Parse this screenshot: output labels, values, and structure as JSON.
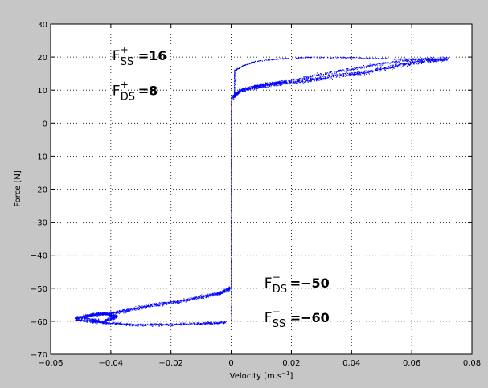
{
  "chart_data": {
    "type": "scatter",
    "title": "",
    "xlabel": "Velocity [m.s",
    "xlabel_sup": "−1",
    "xlabel_close": "]",
    "ylabel": "Force [N]",
    "xlim": [
      -0.06,
      0.08
    ],
    "ylim": [
      -70,
      30
    ],
    "xticks": [
      -0.06,
      -0.04,
      -0.02,
      0,
      0.02,
      0.04,
      0.06,
      0.08
    ],
    "yticks": [
      -70,
      -60,
      -50,
      -40,
      -30,
      -20,
      -10,
      0,
      10,
      20,
      30
    ],
    "xtick_labels": [
      "−0.06",
      "−0.04",
      "−0.02",
      "0",
      "0.02",
      "0.04",
      "0.06",
      "0.08"
    ],
    "ytick_labels": [
      "−70",
      "−60",
      "−50",
      "−40",
      "−30",
      "−20",
      "−10",
      "0",
      "10",
      "20",
      "30"
    ],
    "grid": true,
    "point_color": "#0000ff",
    "annotations": [
      {
        "base": "F",
        "sup": "+",
        "sub": "SS",
        "value": "=16",
        "x": -0.0395,
        "y": 19.0
      },
      {
        "base": "F",
        "sup": "+",
        "sub": "DS",
        "value": "=8",
        "x": -0.0395,
        "y": 8.5
      },
      {
        "base": "F",
        "sup": "−",
        "sub": "DS",
        "value": "=−50",
        "x": 0.011,
        "y": -49.8
      },
      {
        "base": "F",
        "sup": "−",
        "sub": "SS",
        "value": "=−60",
        "x": 0.011,
        "y": -60.3
      }
    ],
    "series": [
      {
        "segments": [
          {
            "path": [
              [
                0.0005,
                8
              ],
              [
                0.003,
                10
              ],
              [
                0.008,
                11
              ],
              [
                0.015,
                12
              ],
              [
                0.025,
                13
              ],
              [
                0.035,
                14.5
              ],
              [
                0.045,
                15.5
              ],
              [
                0.055,
                17.5
              ],
              [
                0.065,
                19
              ],
              [
                0.072,
                19.5
              ]
            ],
            "spread": 1.3,
            "n": 1400
          },
          {
            "path": [
              [
                0.068,
                19.5
              ],
              [
                0.06,
                19.3
              ],
              [
                0.05,
                18
              ],
              [
                0.04,
                16.5
              ],
              [
                0.03,
                15
              ],
              [
                0.02,
                13
              ],
              [
                0.012,
                12
              ],
              [
                0.007,
                11
              ]
            ],
            "spread": 1.0,
            "n": 600
          },
          {
            "path": [
              [
                0.001,
                16
              ],
              [
                0.004,
                17.5
              ],
              [
                0.008,
                18.8
              ],
              [
                0.015,
                19.5
              ],
              [
                0.025,
                20
              ],
              [
                0.035,
                20
              ],
              [
                0.045,
                19.8
              ],
              [
                0.055,
                19.5
              ],
              [
                0.065,
                19.6
              ]
            ],
            "spread": 0.4,
            "n": 300
          },
          {
            "path": [
              [
                0.001,
                16
              ],
              [
                0.001,
                8
              ]
            ],
            "spread": 0.5,
            "n": 80
          },
          {
            "path": [
              [
                0,
                8
              ],
              [
                0,
                -50
              ]
            ],
            "spread": 0.35,
            "n": 1100
          },
          {
            "path": [
              [
                0,
                7
              ],
              [
                0,
                -60
              ]
            ],
            "spread": 0.3,
            "n": 300
          },
          {
            "path": [
              [
                -0.0005,
                -50
              ],
              [
                -0.004,
                -51.5
              ],
              [
                -0.01,
                -52.5
              ],
              [
                -0.018,
                -54
              ],
              [
                -0.026,
                -55
              ],
              [
                -0.034,
                -56.5
              ],
              [
                -0.04,
                -57.5
              ],
              [
                -0.046,
                -58
              ],
              [
                -0.052,
                -59
              ]
            ],
            "spread": 1.1,
            "n": 1100
          },
          {
            "path": [
              [
                -0.052,
                -59.5
              ],
              [
                -0.046,
                -60
              ],
              [
                -0.04,
                -60.5
              ],
              [
                -0.032,
                -61
              ],
              [
                -0.024,
                -61
              ],
              [
                -0.016,
                -60.8
              ],
              [
                -0.008,
                -60.5
              ],
              [
                -0.002,
                -60.3
              ]
            ],
            "spread": 0.8,
            "n": 700
          },
          {
            "path": [
              [
                -0.047,
                -58
              ],
              [
                -0.042,
                -57.5
              ],
              [
                -0.038,
                -58.5
              ],
              [
                -0.043,
                -60
              ],
              [
                -0.049,
                -59
              ]
            ],
            "spread": 1.0,
            "n": 500
          }
        ]
      }
    ]
  }
}
